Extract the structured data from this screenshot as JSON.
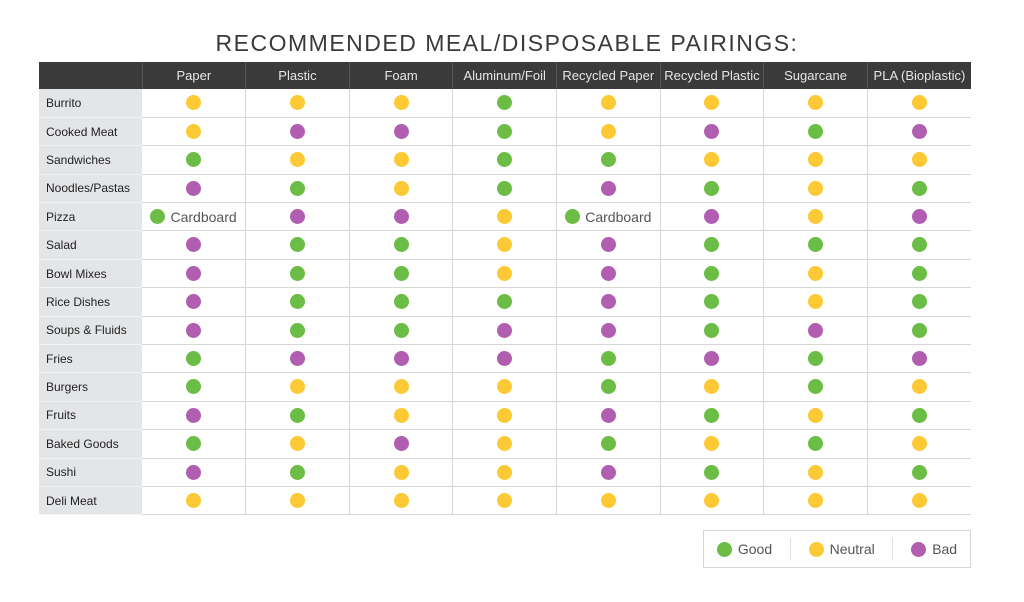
{
  "title": "RECOMMENDED MEAL/DISPOSABLE PAIRINGS:",
  "colors": {
    "good": "#6cbd45",
    "neutral": "#fdc935",
    "bad": "#b15eb0"
  },
  "legend": [
    {
      "key": "good",
      "label": "Good"
    },
    {
      "key": "neutral",
      "label": "Neutral"
    },
    {
      "key": "bad",
      "label": "Bad"
    }
  ],
  "chart_data": {
    "type": "table",
    "columns": [
      "Paper",
      "Plastic",
      "Foam",
      "Aluminum/Foil",
      "Recycled Paper",
      "Recycled Plastic",
      "Sugarcane",
      "PLA (Bioplastic)"
    ],
    "rows": [
      {
        "meal": "Burrito",
        "ratings": [
          "neutral",
          "neutral",
          "neutral",
          "good",
          "neutral",
          "neutral",
          "neutral",
          "neutral"
        ]
      },
      {
        "meal": "Cooked Meat",
        "ratings": [
          "neutral",
          "bad",
          "bad",
          "good",
          "neutral",
          "bad",
          "good",
          "bad"
        ]
      },
      {
        "meal": "Sandwiches",
        "ratings": [
          "good",
          "neutral",
          "neutral",
          "good",
          "good",
          "neutral",
          "neutral",
          "neutral"
        ]
      },
      {
        "meal": "Noodles/Pastas",
        "ratings": [
          "bad",
          "good",
          "neutral",
          "good",
          "bad",
          "good",
          "neutral",
          "good"
        ]
      },
      {
        "meal": "Pizza",
        "ratings": [
          "good",
          "bad",
          "bad",
          "neutral",
          "good",
          "bad",
          "neutral",
          "bad"
        ],
        "notes": [
          "Cardboard",
          "",
          "",
          "",
          "Cardboard",
          "",
          "",
          ""
        ]
      },
      {
        "meal": "Salad",
        "ratings": [
          "bad",
          "good",
          "good",
          "neutral",
          "bad",
          "good",
          "good",
          "good"
        ]
      },
      {
        "meal": "Bowl Mixes",
        "ratings": [
          "bad",
          "good",
          "good",
          "neutral",
          "bad",
          "good",
          "neutral",
          "good"
        ]
      },
      {
        "meal": "Rice Dishes",
        "ratings": [
          "bad",
          "good",
          "good",
          "good",
          "bad",
          "good",
          "neutral",
          "good"
        ]
      },
      {
        "meal": "Soups & Fluids",
        "ratings": [
          "bad",
          "good",
          "good",
          "bad",
          "bad",
          "good",
          "bad",
          "good"
        ]
      },
      {
        "meal": "Fries",
        "ratings": [
          "good",
          "bad",
          "bad",
          "bad",
          "good",
          "bad",
          "good",
          "bad"
        ]
      },
      {
        "meal": "Burgers",
        "ratings": [
          "good",
          "neutral",
          "neutral",
          "neutral",
          "good",
          "neutral",
          "good",
          "neutral"
        ]
      },
      {
        "meal": "Fruits",
        "ratings": [
          "bad",
          "good",
          "neutral",
          "neutral",
          "bad",
          "good",
          "neutral",
          "good"
        ]
      },
      {
        "meal": "Baked Goods",
        "ratings": [
          "good",
          "neutral",
          "bad",
          "neutral",
          "good",
          "neutral",
          "good",
          "neutral"
        ]
      },
      {
        "meal": "Sushi",
        "ratings": [
          "bad",
          "good",
          "neutral",
          "neutral",
          "bad",
          "good",
          "neutral",
          "good"
        ]
      },
      {
        "meal": "Deli Meat",
        "ratings": [
          "neutral",
          "neutral",
          "neutral",
          "neutral",
          "neutral",
          "neutral",
          "neutral",
          "neutral"
        ]
      }
    ]
  }
}
